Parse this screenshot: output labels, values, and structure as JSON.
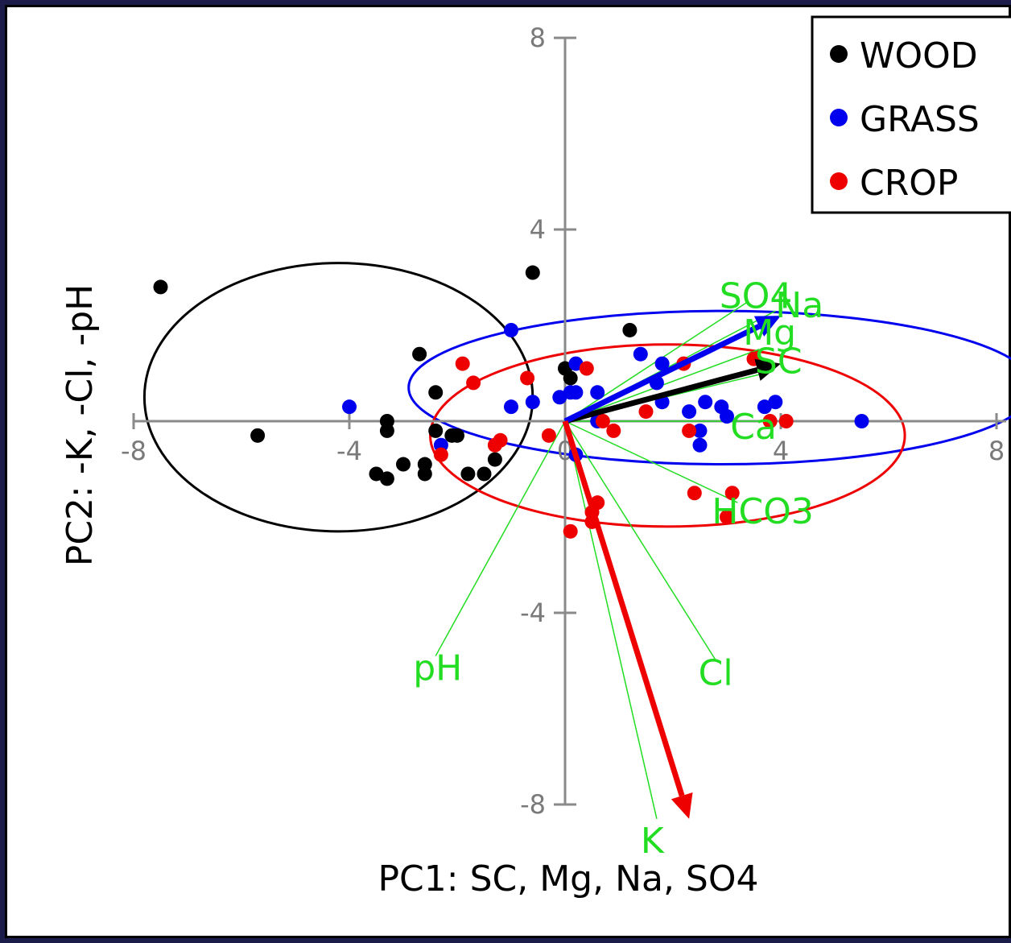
{
  "chart_data": {
    "type": "scatter",
    "subtype": "PCA biplot",
    "title": "",
    "xlabel": "PC1: SC, Mg, Na, SO4",
    "ylabel": "PC2: -K, -Cl, -pH",
    "xlim": [
      -8,
      8
    ],
    "ylim": [
      -8,
      8
    ],
    "xticks": [
      -8,
      -4,
      0,
      4,
      8
    ],
    "yticks": [
      8,
      4,
      -4,
      -8
    ],
    "grid": false,
    "legend_position": "top-right",
    "legend": [
      "WOOD",
      "GRASS",
      "CROP"
    ],
    "series": [
      {
        "name": "WOOD",
        "color": "#000000",
        "points": [
          [
            -7.5,
            2.8
          ],
          [
            -5.7,
            -0.3
          ],
          [
            -3.3,
            -1.2
          ],
          [
            -3.5,
            -1.1
          ],
          [
            -3.0,
            -0.9
          ],
          [
            -3.3,
            0.0
          ],
          [
            -3.3,
            -0.2
          ],
          [
            -2.7,
            1.4
          ],
          [
            -2.6,
            -0.9
          ],
          [
            -2.6,
            -1.1
          ],
          [
            -2.4,
            0.6
          ],
          [
            -2.4,
            -0.2
          ],
          [
            -2.1,
            -0.3
          ],
          [
            -2.0,
            -0.3
          ],
          [
            -1.8,
            -1.1
          ],
          [
            -1.5,
            -1.1
          ],
          [
            -1.3,
            -0.8
          ],
          [
            -0.6,
            3.1
          ],
          [
            0.0,
            1.1
          ],
          [
            0.1,
            0.9
          ],
          [
            1.2,
            1.9
          ]
        ]
      },
      {
        "name": "GRASS",
        "color": "#0000ee",
        "points": [
          [
            -4.0,
            0.3
          ],
          [
            -1.0,
            1.9
          ],
          [
            -1.0,
            0.3
          ],
          [
            -0.6,
            0.4
          ],
          [
            -2.3,
            -0.5
          ],
          [
            -0.1,
            0.5
          ],
          [
            0.1,
            0.6
          ],
          [
            0.2,
            1.2
          ],
          [
            0.2,
            0.6
          ],
          [
            0.6,
            0.6
          ],
          [
            0.6,
            0.0
          ],
          [
            0.2,
            -0.7
          ],
          [
            1.4,
            1.4
          ],
          [
            1.8,
            1.2
          ],
          [
            1.7,
            0.8
          ],
          [
            1.8,
            0.4
          ],
          [
            2.3,
            0.2
          ],
          [
            2.6,
            0.4
          ],
          [
            2.9,
            0.3
          ],
          [
            2.5,
            -0.2
          ],
          [
            2.5,
            -0.5
          ],
          [
            3.0,
            0.1
          ],
          [
            3.7,
            0.3
          ],
          [
            3.9,
            0.4
          ],
          [
            5.5,
            0.0
          ]
        ]
      },
      {
        "name": "CROP",
        "color": "#ee0000",
        "points": [
          [
            -1.9,
            1.2
          ],
          [
            -1.7,
            0.8
          ],
          [
            -0.7,
            0.9
          ],
          [
            -1.2,
            -0.4
          ],
          [
            -1.3,
            -0.5
          ],
          [
            -0.3,
            -0.3
          ],
          [
            -2.3,
            -0.7
          ],
          [
            0.4,
            1.1
          ],
          [
            0.7,
            0.0
          ],
          [
            0.9,
            -0.2
          ],
          [
            1.5,
            0.2
          ],
          [
            2.2,
            1.2
          ],
          [
            2.3,
            -0.2
          ],
          [
            2.4,
            -1.5
          ],
          [
            3.1,
            -1.5
          ],
          [
            3.0,
            -2.0
          ],
          [
            3.5,
            1.3
          ],
          [
            3.8,
            0.0
          ],
          [
            4.1,
            0.0
          ],
          [
            0.6,
            -1.7
          ],
          [
            0.5,
            -1.9
          ],
          [
            0.5,
            -2.1
          ],
          [
            0.1,
            -2.3
          ]
        ]
      }
    ],
    "ellipses": [
      {
        "name": "WOOD",
        "color": "#000000",
        "center": [
          -4.2,
          0.5
        ],
        "radii": [
          3.6,
          2.8
        ]
      },
      {
        "name": "GRASS",
        "color": "#0000ee",
        "center": [
          2.9,
          0.7
        ],
        "radii": [
          5.8,
          1.6
        ]
      },
      {
        "name": "CROP",
        "color": "#ee0000",
        "center": [
          1.9,
          -0.3
        ],
        "radii": [
          4.4,
          1.9
        ]
      }
    ],
    "variable_vectors": [
      {
        "label": "SO4",
        "x": 3.4,
        "y": 2.5
      },
      {
        "label": "Na",
        "x": 3.9,
        "y": 2.3
      },
      {
        "label": "Mg",
        "x": 3.6,
        "y": 1.5
      },
      {
        "label": "SC",
        "x": 3.7,
        "y": 1.0
      },
      {
        "label": "Ca",
        "x": 3.6,
        "y": 0.0
      },
      {
        "label": "HCO3",
        "x": 3.2,
        "y": -1.7
      },
      {
        "label": "Cl",
        "x": 2.8,
        "y": -5.0
      },
      {
        "label": "K",
        "x": 1.7,
        "y": -8.3
      },
      {
        "label": "pH",
        "x": -2.4,
        "y": -4.9
      }
    ],
    "group_arrows": [
      {
        "name": "WOOD",
        "color": "#000000",
        "x": 4.0,
        "y": 1.2
      },
      {
        "name": "GRASS",
        "color": "#0000ee",
        "x": 4.0,
        "y": 2.2
      },
      {
        "name": "CROP",
        "color": "#ee0000",
        "x": 2.3,
        "y": -8.3
      }
    ]
  }
}
